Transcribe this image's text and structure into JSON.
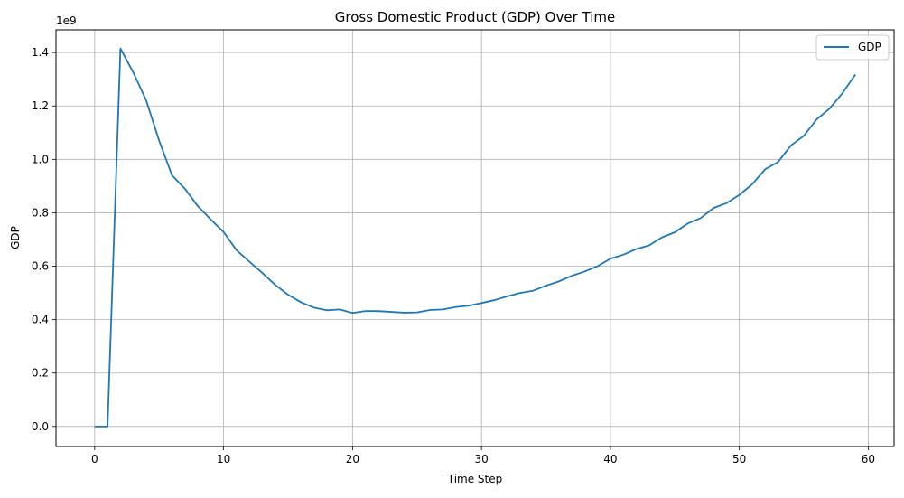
{
  "chart_data": {
    "type": "line",
    "title": "Gross Domestic Product (GDP) Over Time",
    "xlabel": "Time Step",
    "ylabel": "GDP",
    "y_scale_label": "1e9",
    "xlim": [
      -3,
      62
    ],
    "ylim": [
      -0.075,
      1.485
    ],
    "x_ticks": [
      0,
      10,
      20,
      30,
      40,
      50,
      60
    ],
    "x_tick_labels": [
      "0",
      "10",
      "20",
      "30",
      "40",
      "50",
      "60"
    ],
    "y_ticks": [
      0.0,
      0.2,
      0.4,
      0.6,
      0.8,
      1.0,
      1.2,
      1.4
    ],
    "y_tick_labels": [
      "0.0",
      "0.2",
      "0.4",
      "0.6",
      "0.8",
      "1.0",
      "1.2",
      "1.4"
    ],
    "grid": true,
    "legend_position": "top-right",
    "series": [
      {
        "name": "GDP",
        "color": "#1f77b4",
        "x": [
          0,
          1,
          2,
          3,
          4,
          5,
          6,
          7,
          8,
          9,
          10,
          11,
          12,
          13,
          14,
          15,
          16,
          17,
          18,
          19,
          20,
          21,
          22,
          23,
          24,
          25,
          26,
          27,
          28,
          29,
          30,
          31,
          32,
          33,
          34,
          35,
          36,
          37,
          38,
          39,
          40,
          41,
          42,
          43,
          44,
          45,
          46,
          47,
          48,
          49,
          50,
          51,
          52,
          53,
          54,
          55,
          56,
          57,
          58,
          59
        ],
        "y": [
          0.0,
          0.0,
          1.415,
          1.325,
          1.22,
          1.07,
          0.94,
          0.89,
          0.825,
          0.775,
          0.728,
          0.66,
          0.617,
          0.575,
          0.53,
          0.493,
          0.465,
          0.445,
          0.435,
          0.438,
          0.425,
          0.432,
          0.432,
          0.429,
          0.426,
          0.427,
          0.436,
          0.438,
          0.447,
          0.452,
          0.462,
          0.473,
          0.487,
          0.5,
          0.508,
          0.527,
          0.543,
          0.564,
          0.58,
          0.6,
          0.628,
          0.643,
          0.664,
          0.678,
          0.708,
          0.727,
          0.76,
          0.78,
          0.818,
          0.836,
          0.867,
          0.907,
          0.963,
          0.99,
          1.052,
          1.088,
          1.15,
          1.19,
          1.248,
          1.318
        ]
      }
    ]
  }
}
